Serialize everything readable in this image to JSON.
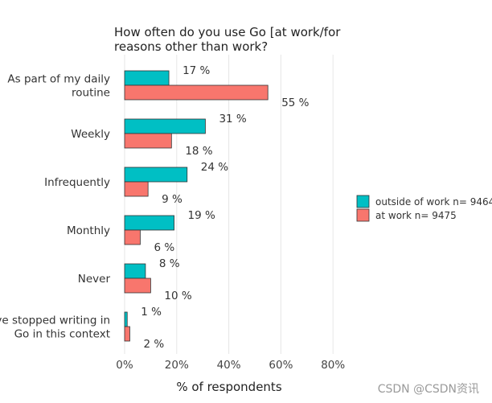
{
  "chart_data": {
    "type": "bar",
    "orientation": "horizontal",
    "title_lines": [
      "How often do you use Go [at work/for",
      "reasons other than work?"
    ],
    "xlabel": "% of respondents",
    "ylabel": "",
    "xlim": [
      0,
      80
    ],
    "xticks": [
      0,
      20,
      40,
      60,
      80
    ],
    "tick_labels": [
      "0%",
      "20%",
      "40%",
      "60%",
      "80%"
    ],
    "grid": true,
    "legend_position": "right",
    "categories": [
      [
        "As part of my daily",
        "routine"
      ],
      [
        "Weekly"
      ],
      [
        "Infrequently"
      ],
      [
        "Monthly"
      ],
      [
        "Never"
      ],
      [
        "I've stopped writing in",
        "Go in this context"
      ]
    ],
    "series": [
      {
        "name": "outside of work n= 9464",
        "color": "#00bfc4",
        "values": [
          17,
          31,
          24,
          19,
          8,
          1
        ],
        "labels": [
          "17 %",
          "31 %",
          "24 %",
          "19 %",
          "8 %",
          "1 %"
        ]
      },
      {
        "name": "at work n= 9475",
        "color": "#f8766d",
        "values": [
          55,
          18,
          9,
          6,
          10,
          2
        ],
        "labels": [
          "55 %",
          "18 %",
          "9 %",
          "6 %",
          "10 %",
          "2 %"
        ]
      }
    ]
  },
  "watermark": "CSDN @CSDN资讯"
}
